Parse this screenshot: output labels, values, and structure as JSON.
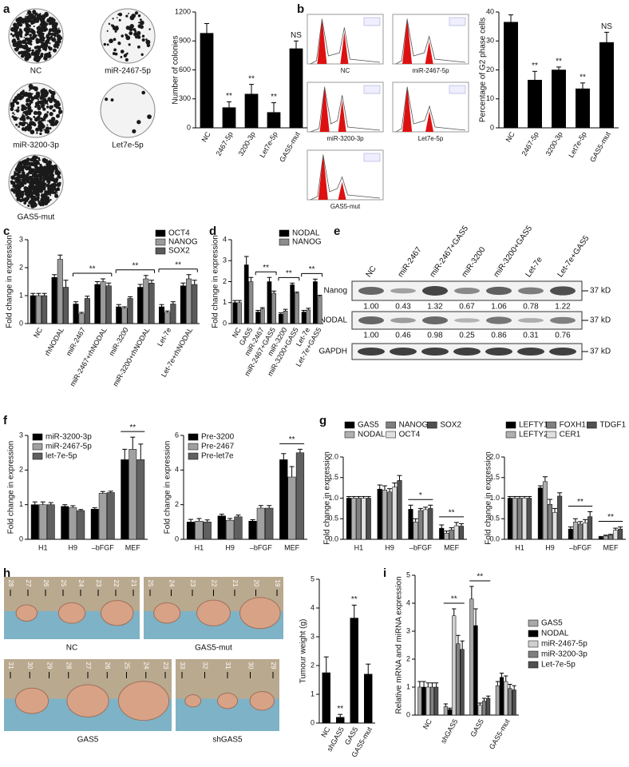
{
  "panel_labels": [
    "a",
    "b",
    "c",
    "d",
    "e",
    "f",
    "g",
    "h",
    "i"
  ],
  "colony_images": {
    "labels": [
      "NC",
      "miR-2467-5p",
      "miR-3200-3p",
      "Let7e-5p",
      "GAS5-mut"
    ]
  },
  "flow_images": {
    "labels": [
      "NC",
      "miR-2467-5p",
      "miR-3200-3p",
      "Let7e-5p",
      "GAS5-mut"
    ]
  },
  "blot": {
    "lanes": [
      "NC",
      "miR-2467",
      "miR-2467+GAS5",
      "miR-3200",
      "miR-3200+GAS5",
      "Let-7e",
      "Let-7e+GAS5"
    ],
    "rows": [
      {
        "name": "Nanog",
        "size": "37 kD",
        "values": [
          1,
          0.43,
          1.32,
          0.67,
          1.06,
          0.78,
          1.22
        ],
        "value_labels": [
          "1.00",
          "0.43",
          "1.32",
          "0.67",
          "1.06",
          "0.78",
          "1.22"
        ]
      },
      {
        "name": "NODAL",
        "size": "37 kD",
        "values": [
          1,
          0.46,
          0.98,
          0.25,
          0.86,
          0.31,
          0.76
        ],
        "value_labels": [
          "1.00",
          "0.46",
          "0.98",
          "0.25",
          "0.86",
          "0.31",
          "0.76"
        ]
      },
      {
        "name": "GAPDH",
        "size": "37 kD"
      }
    ]
  },
  "tumour_photos": [
    {
      "label": "NC",
      "ruler": [
        "28",
        "27",
        "26",
        "25",
        "24",
        "23",
        "22",
        "21"
      ]
    },
    {
      "label": "GAS5-mut",
      "ruler": [
        "25",
        "24",
        "23",
        "22",
        "21",
        "20",
        "19"
      ]
    },
    {
      "label": "GAS5",
      "ruler": [
        "31",
        "30",
        "29",
        "28",
        "27",
        "26",
        "25",
        "24",
        "23"
      ]
    },
    {
      "label": "shGAS5",
      "ruler": [
        "33",
        "32",
        "31",
        "30",
        "29"
      ]
    }
  ],
  "chart_data": [
    {
      "type": "bar",
      "ylabel": "Number of colonies",
      "categories": [
        "NC",
        "2467-5p",
        "3200-3p",
        "Let7e-5p",
        "GAS5-mut"
      ],
      "values": [
        980,
        210,
        350,
        160,
        820
      ],
      "errors": [
        100,
        60,
        100,
        100,
        80
      ],
      "bar_labels": [
        null,
        "**",
        "**",
        "**",
        "NS"
      ],
      "color": "#000000",
      "ylim": [
        0,
        1200
      ],
      "yticks": [
        0,
        300,
        600,
        900,
        1200
      ]
    },
    {
      "type": "bar",
      "ylabel": "Percentage of G2 phase cells",
      "categories": [
        "NC",
        "2467-5p",
        "3200-3p",
        "Let7e-5p",
        "GAS5-mut"
      ],
      "values": [
        36.5,
        16.5,
        20,
        13.5,
        29.5
      ],
      "errors": [
        2.5,
        3,
        1,
        2,
        3.5
      ],
      "bar_labels": [
        null,
        "**",
        "**",
        "**",
        "NS"
      ],
      "color": "#000000",
      "ylim": [
        0,
        40
      ],
      "yticks": [
        0,
        10,
        20,
        30,
        40
      ]
    },
    {
      "type": "bar",
      "ylabel": "Fold change in expression",
      "categories": [
        "NC",
        "rhNODAL",
        "miR-2467",
        "miR-2467+rhNODAL",
        "miR-3200",
        "miR-3200+rhNODAL",
        "Let-7e",
        "Let-7e+rhNODAL"
      ],
      "series": [
        {
          "name": "OCT4",
          "color": "#000000",
          "values": [
            1.0,
            1.65,
            0.7,
            1.4,
            0.6,
            1.3,
            0.6,
            1.35
          ],
          "errors": [
            0.08,
            0.1,
            0.08,
            0.1,
            0.08,
            0.1,
            0.08,
            0.1
          ]
        },
        {
          "name": "NANOG",
          "color": "#9a9a9a",
          "values": [
            1.0,
            2.3,
            0.35,
            1.5,
            0.55,
            1.6,
            0.4,
            1.6
          ],
          "errors": [
            0.08,
            0.15,
            0.05,
            0.1,
            0.05,
            0.12,
            0.05,
            0.15
          ]
        },
        {
          "name": "SOX2",
          "color": "#5a5a5a",
          "values": [
            1.0,
            1.3,
            0.9,
            1.35,
            0.9,
            1.45,
            0.7,
            1.4
          ],
          "errors": [
            0.08,
            0.25,
            0.08,
            0.1,
            0.06,
            0.1,
            0.08,
            0.15
          ]
        }
      ],
      "significance": [
        {
          "label": "**",
          "from": "miR-2467",
          "to": "miR-2467+rhNODAL"
        },
        {
          "label": "**",
          "from": "miR-3200",
          "to": "miR-3200+rhNODAL"
        },
        {
          "label": "**",
          "from": "Let-7e",
          "to": "Let-7e+rhNODAL"
        }
      ],
      "legend": "top-right",
      "ylim": [
        0,
        3
      ],
      "yticks": [
        0,
        1,
        2,
        3
      ]
    },
    {
      "type": "bar",
      "ylabel": "Fold change in expression",
      "categories": [
        "NC",
        "GAS5",
        "miR-2467",
        "miR-2467+GAS5",
        "miR-3200",
        "miR-3200+GAS5",
        "Let-7e",
        "Let-7e+GAS5"
      ],
      "series": [
        {
          "name": "NODAL",
          "color": "#000000",
          "values": [
            1.0,
            2.8,
            0.55,
            2.0,
            0.45,
            1.85,
            0.55,
            2.0
          ],
          "errors": [
            0.1,
            0.4,
            0.08,
            0.2,
            0.06,
            0.08,
            0.08,
            0.12
          ]
        },
        {
          "name": "NANOG",
          "color": "#8c8c8c",
          "values": [
            1.0,
            2.0,
            0.7,
            1.45,
            0.6,
            1.45,
            0.65,
            1.3
          ],
          "errors": [
            0.1,
            0.2,
            0.06,
            0.1,
            0.08,
            0.05,
            0.08,
            0.05
          ]
        }
      ],
      "significance": [
        {
          "label": "**",
          "from": "miR-2467",
          "to": "miR-2467+GAS5"
        },
        {
          "label": "**",
          "from": "miR-3200",
          "to": "miR-3200+GAS5"
        },
        {
          "label": "**",
          "from": "Let-7e",
          "to": "Let-7e+GAS5"
        }
      ],
      "legend": "top-right",
      "ylim": [
        0,
        4
      ],
      "yticks": [
        0,
        1,
        2,
        3,
        4
      ]
    },
    {
      "type": "bar",
      "ylabel": "Fold change in expression",
      "categories": [
        "H1",
        "H9",
        "–bFGF",
        "MEF"
      ],
      "series": [
        {
          "name": "miR-3200-3p",
          "color": "#000000",
          "values": [
            1.0,
            0.95,
            0.87,
            2.3
          ],
          "errors": [
            0.08,
            0.05,
            0.04,
            0.3
          ]
        },
        {
          "name": "miR-2467-5p",
          "color": "#a0a0a0",
          "values": [
            1.0,
            0.92,
            1.33,
            2.6
          ],
          "errors": [
            0.08,
            0.05,
            0.05,
            0.35
          ]
        },
        {
          "name": "let-7e-5p",
          "color": "#606060",
          "values": [
            1.0,
            0.83,
            1.35,
            2.3
          ],
          "errors": [
            0.06,
            0.03,
            0.04,
            0.45
          ]
        }
      ],
      "significance": [
        {
          "label": "**",
          "from": "MEF",
          "to": "MEF"
        }
      ],
      "legend": "top-left",
      "ylim": [
        0,
        3
      ],
      "yticks": [
        0,
        1,
        2,
        3
      ]
    },
    {
      "type": "bar",
      "ylabel": "Fold change in expression",
      "categories": [
        "H1",
        "H9",
        "–bFGF",
        "MEF"
      ],
      "series": [
        {
          "name": "Pre-3200",
          "color": "#000000",
          "values": [
            1.0,
            1.35,
            1.05,
            4.6
          ],
          "errors": [
            0.15,
            0.1,
            0.08,
            0.35
          ]
        },
        {
          "name": "Pre-2467",
          "color": "#a0a0a0",
          "values": [
            1.05,
            1.1,
            1.8,
            3.6
          ],
          "errors": [
            0.15,
            0.1,
            0.15,
            0.6
          ]
        },
        {
          "name": "Pre-let7e",
          "color": "#606060",
          "values": [
            1.0,
            1.3,
            1.8,
            5.0
          ],
          "errors": [
            0.12,
            0.1,
            0.15,
            0.2
          ]
        }
      ],
      "significance": [
        {
          "label": "**",
          "from": "MEF",
          "to": "MEF"
        }
      ],
      "legend": "top-left",
      "ylim": [
        0,
        6
      ],
      "yticks": [
        0,
        2,
        4,
        6
      ]
    },
    {
      "type": "bar",
      "ylabel": "Fold change in expression",
      "categories": [
        "H1",
        "H9",
        "–bFGF",
        "MEF"
      ],
      "series": [
        {
          "name": "GAS5",
          "color": "#000000",
          "values": [
            1.0,
            1.22,
            0.73,
            0.27
          ],
          "errors": [
            0.04,
            0.1,
            0.1,
            0.08
          ]
        },
        {
          "name": "NODAL",
          "color": "#b0b0b0",
          "values": [
            1.0,
            1.2,
            0.42,
            0.15
          ],
          "errors": [
            0.04,
            0.1,
            0.08,
            0.05
          ]
        },
        {
          "name": "NANOG",
          "color": "#808080",
          "values": [
            1.0,
            1.15,
            0.7,
            0.23
          ],
          "errors": [
            0.04,
            0.08,
            0.05,
            0.05
          ]
        },
        {
          "name": "OCT4",
          "color": "#e0e0e0",
          "values": [
            1.0,
            1.27,
            0.72,
            0.33
          ],
          "errors": [
            0.04,
            0.1,
            0.06,
            0.08
          ]
        },
        {
          "name": "SOX2",
          "color": "#505050",
          "values": [
            1.0,
            1.43,
            0.75,
            0.32
          ],
          "errors": [
            0.04,
            0.12,
            0.08,
            0.06
          ]
        }
      ],
      "significance": [
        {
          "label": "*",
          "from": "–bFGF",
          "to": "–bFGF"
        },
        {
          "label": "**",
          "from": "MEF",
          "to": "MEF"
        }
      ],
      "legend": "top",
      "ylim": [
        0,
        2
      ],
      "yticks": [
        {
          "value": 0,
          "label": "0.0"
        },
        0.5,
        {
          "value": 1,
          "label": "1.0"
        },
        1.5,
        {
          "value": 2,
          "label": "2.0"
        }
      ]
    },
    {
      "type": "bar",
      "ylabel": "Fold change in expression",
      "categories": [
        "H1",
        "H9",
        "–bFGF",
        "MEF"
      ],
      "series": [
        {
          "name": "LEFTY1",
          "color": "#000000",
          "values": [
            1.0,
            1.25,
            0.25,
            0.05
          ],
          "errors": [
            0.04,
            0.05,
            0.05,
            0.02
          ]
        },
        {
          "name": "LEFTY2",
          "color": "#b0b0b0",
          "values": [
            1.0,
            1.4,
            0.42,
            0.08
          ],
          "errors": [
            0.04,
            0.12,
            0.08,
            0.02
          ]
        },
        {
          "name": "FOXH1",
          "color": "#808080",
          "values": [
            1.0,
            0.85,
            0.37,
            0.1
          ],
          "errors": [
            0.04,
            0.12,
            0.06,
            0.02
          ]
        },
        {
          "name": "CER1",
          "color": "#e0e0e0",
          "values": [
            1.0,
            0.65,
            0.4,
            0.22
          ],
          "errors": [
            0.04,
            0.1,
            0.08,
            0.05
          ]
        },
        {
          "name": "TDGF1",
          "color": "#505050",
          "values": [
            1.0,
            1.05,
            0.55,
            0.25
          ],
          "errors": [
            0.04,
            0.08,
            0.12,
            0.05
          ]
        }
      ],
      "significance": [
        {
          "label": "**",
          "from": "–bFGF",
          "to": "–bFGF"
        },
        {
          "label": "**",
          "from": "MEF",
          "to": "MEF"
        }
      ],
      "legend": "top",
      "ylim": [
        0,
        2
      ],
      "yticks": [
        {
          "value": 0,
          "label": "0.0"
        },
        0.5,
        {
          "value": 1,
          "label": "1.0"
        },
        1.5,
        {
          "value": 2,
          "label": "2.0"
        }
      ]
    },
    {
      "type": "bar",
      "ylabel": "Tumour weight (g)",
      "categories": [
        "NC",
        "shGAS5",
        "GAS5",
        "GAS5-mut"
      ],
      "values": [
        1.75,
        0.2,
        3.65,
        1.7
      ],
      "errors": [
        0.55,
        0.1,
        0.45,
        0.35
      ],
      "bar_labels": [
        null,
        "**",
        "**",
        null
      ],
      "color": "#000000",
      "ylim": [
        0,
        5
      ],
      "yticks": [
        0,
        1,
        2,
        3,
        4,
        5
      ]
    },
    {
      "type": "bar",
      "ylabel": "Relative mRNA and miRNA expression",
      "categories": [
        "NC",
        "shGAS5",
        "GAS5",
        "GAS5-mut"
      ],
      "series": [
        {
          "name": "GAS5",
          "color": "#a8a8a8",
          "values": [
            1.0,
            0.3,
            4.15,
            1.05
          ],
          "errors": [
            0.2,
            0.1,
            0.45,
            0.15
          ]
        },
        {
          "name": "NODAL",
          "color": "#000000",
          "values": [
            1.0,
            0.2,
            3.2,
            1.35
          ],
          "errors": [
            0.2,
            0.05,
            0.6,
            0.15
          ]
        },
        {
          "name": "miR-2467-5p",
          "color": "#d0d0d0",
          "values": [
            1.0,
            3.55,
            0.35,
            1.2
          ],
          "errors": [
            0.15,
            0.25,
            0.08,
            0.2
          ]
        },
        {
          "name": "miR-3200-3p",
          "color": "#808080",
          "values": [
            1.0,
            2.55,
            0.5,
            0.95
          ],
          "errors": [
            0.15,
            0.3,
            0.1,
            0.15
          ]
        },
        {
          "name": "Let-7e-5p",
          "color": "#505050",
          "values": [
            1.0,
            2.35,
            0.6,
            0.9
          ],
          "errors": [
            0.15,
            0.3,
            0.08,
            0.15
          ]
        }
      ],
      "significance": [
        {
          "label": "**",
          "from": "shGAS5",
          "to": "shGAS5"
        },
        {
          "label": "**",
          "from": "GAS5",
          "to": "GAS5"
        }
      ],
      "legend": "right",
      "ylim": [
        0,
        5
      ],
      "yticks": [
        0,
        1,
        2,
        3,
        4,
        5
      ]
    }
  ]
}
